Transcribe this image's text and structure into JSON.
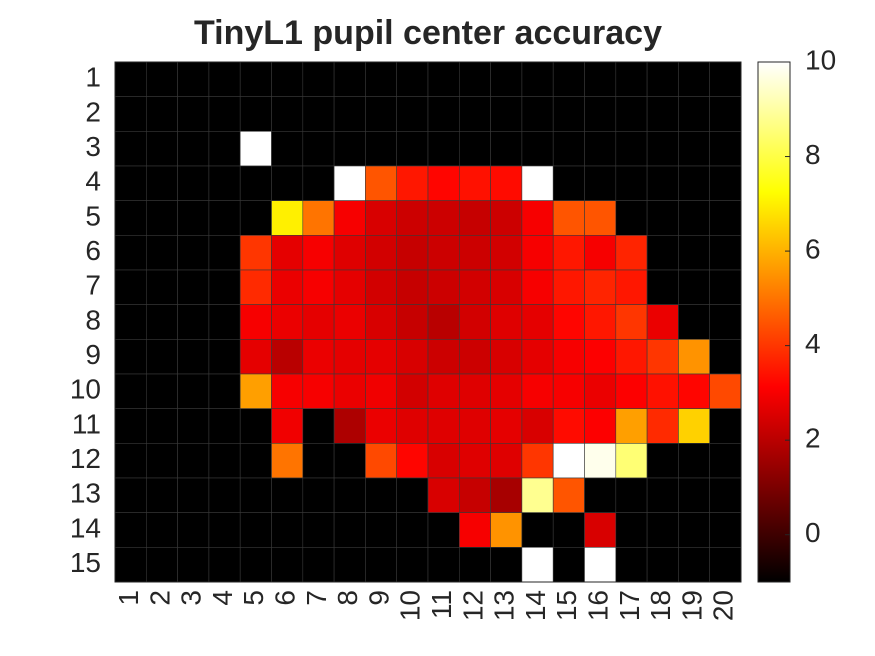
{
  "chart_data": {
    "type": "heatmap",
    "title": "TinyL1 pupil center accuracy",
    "x": [
      1,
      2,
      3,
      4,
      5,
      6,
      7,
      8,
      9,
      10,
      11,
      12,
      13,
      14,
      15,
      16,
      17,
      18,
      19,
      20
    ],
    "y": [
      1,
      2,
      3,
      4,
      5,
      6,
      7,
      8,
      9,
      10,
      11,
      12,
      13,
      14,
      15
    ],
    "colormap": "hot",
    "clim": [
      -1,
      10
    ],
    "cticks": [
      0,
      2,
      4,
      6,
      8,
      10
    ],
    "values": [
      [
        -1,
        -1,
        -1,
        -1,
        -1,
        -1,
        -1,
        -1,
        -1,
        -1,
        -1,
        -1,
        -1,
        -1,
        -1,
        -1,
        -1,
        -1,
        -1,
        -1
      ],
      [
        -1,
        -1,
        -1,
        -1,
        -1,
        -1,
        -1,
        -1,
        -1,
        -1,
        -1,
        -1,
        -1,
        -1,
        -1,
        -1,
        -1,
        -1,
        -1,
        -1
      ],
      [
        -1,
        -1,
        -1,
        -1,
        10,
        -1,
        -1,
        -1,
        -1,
        -1,
        -1,
        -1,
        -1,
        -1,
        -1,
        -1,
        -1,
        -1,
        -1,
        -1
      ],
      [
        -1,
        -1,
        -1,
        -1,
        -1,
        -1,
        -1,
        10,
        4.5,
        3.5,
        3.2,
        3.4,
        3.3,
        10,
        -1,
        -1,
        -1,
        -1,
        -1,
        -1
      ],
      [
        -1,
        -1,
        -1,
        -1,
        -1,
        7,
        5,
        3,
        2.5,
        2.3,
        2.3,
        2.2,
        2.3,
        3,
        4.5,
        4.5,
        -1,
        -1,
        -1,
        -1
      ],
      [
        -1,
        -1,
        -1,
        -1,
        4,
        2.7,
        3,
        2.6,
        2.4,
        2.2,
        2.3,
        2.3,
        2.4,
        3,
        3.5,
        3,
        3.7,
        -1,
        -1,
        -1
      ],
      [
        -1,
        -1,
        -1,
        -1,
        3.8,
        2.8,
        3,
        2.7,
        2.4,
        2.2,
        2.3,
        2.4,
        2.5,
        3,
        3.5,
        3.7,
        3.5,
        -1,
        -1,
        -1
      ],
      [
        -1,
        -1,
        -1,
        -1,
        3,
        2.8,
        2.7,
        2.8,
        2.5,
        2.2,
        2,
        2.4,
        2.6,
        2.7,
        3.2,
        3.5,
        4,
        2.8,
        -1,
        -1
      ],
      [
        -1,
        -1,
        -1,
        -1,
        2.7,
        2,
        2.8,
        2.7,
        2.7,
        2.5,
        2.3,
        2.3,
        2.5,
        2.7,
        3,
        3.1,
        3.5,
        4,
        5.5,
        -1
      ],
      [
        -1,
        -1,
        -1,
        -1,
        5.7,
        3,
        3,
        2.8,
        2.9,
        2.4,
        2.6,
        2.6,
        2.7,
        3,
        3,
        2.8,
        3.1,
        3.4,
        3.2,
        4.3
      ],
      [
        -1,
        -1,
        -1,
        -1,
        -1,
        2.9,
        -1,
        1.8,
        2.8,
        2.6,
        2.6,
        2.6,
        2.7,
        2.5,
        3.3,
        3.1,
        5.7,
        3.8,
        6.5,
        -1
      ],
      [
        -1,
        -1,
        -1,
        -1,
        -1,
        5,
        -1,
        -1,
        4.3,
        3.2,
        2.5,
        2.6,
        2.6,
        4,
        10,
        9.8,
        8.5,
        -1,
        -1,
        -1
      ],
      [
        -1,
        -1,
        -1,
        -1,
        -1,
        -1,
        -1,
        -1,
        -1,
        -1,
        2.5,
        2.2,
        1.7,
        8.8,
        4.5,
        -1,
        -1,
        -1,
        -1,
        -1
      ],
      [
        -1,
        -1,
        -1,
        -1,
        -1,
        -1,
        -1,
        -1,
        -1,
        -1,
        -1,
        3,
        5.5,
        -1,
        -1,
        2.5,
        -1,
        -1,
        -1,
        -1
      ],
      [
        -1,
        -1,
        -1,
        -1,
        -1,
        -1,
        -1,
        -1,
        -1,
        -1,
        -1,
        -1,
        -1,
        10,
        -1,
        10,
        -1,
        -1,
        -1,
        -1
      ]
    ]
  }
}
